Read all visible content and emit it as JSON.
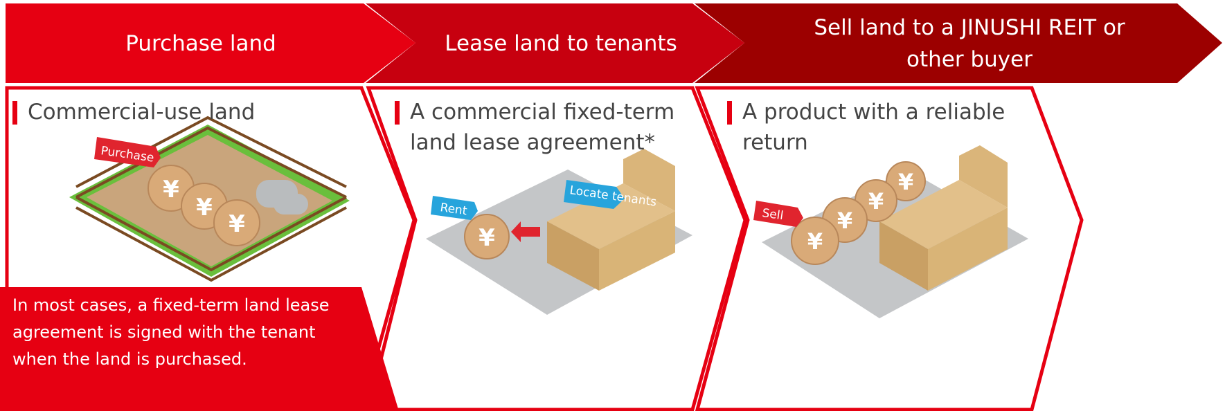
{
  "steps": [
    {
      "header": "Purchase land",
      "subtitle": "Commercial-use land",
      "tags": [
        "Purchase"
      ]
    },
    {
      "header": "Lease land to tenants",
      "subtitle": "A commercial fixed-term land lease agreement*",
      "tags": [
        "Rent",
        "Locate tenants"
      ]
    },
    {
      "header": "Sell land to a JINUSHI REIT or other buyer",
      "subtitle": "A product with a reliable return",
      "tags": [
        "Sell"
      ]
    }
  ],
  "note": "In most cases, a fixed-term land lease agreement is signed with the tenant when the land is purchased."
}
